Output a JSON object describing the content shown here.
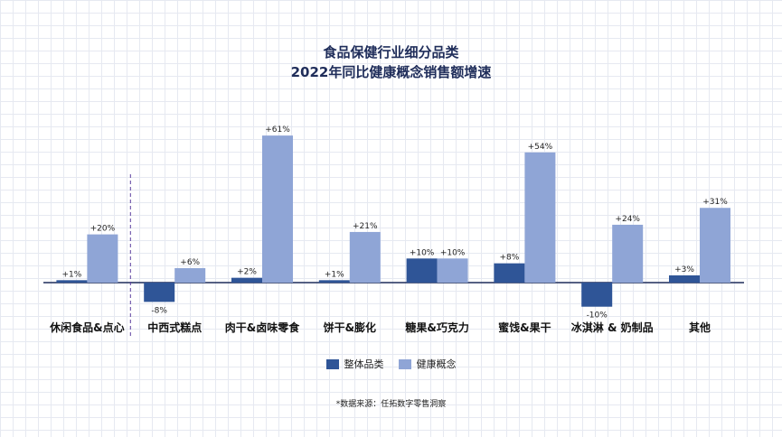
{
  "title_line1": "食品保健行业细分品类",
  "title_line2": "2022年同比健康概念销售额增速",
  "source": "*数据来源：任拓数字零售洞察",
  "colors": {
    "overall": "#2f5597",
    "health": "#8fa5d6"
  },
  "chart_data": {
    "type": "bar",
    "categories": [
      "休闲食品&点心",
      "中西式糕点",
      "肉干&卤味零食",
      "饼干&膨化",
      "糖果&巧克力",
      "蜜饯&果干",
      "冰淇淋 & 奶制品",
      "其他"
    ],
    "series": [
      {
        "name": "整体品类",
        "values": [
          1,
          -8,
          2,
          1,
          10,
          8,
          -10,
          3
        ],
        "labels": [
          "+1%",
          "-8%",
          "+2%",
          "+1%",
          "+10%",
          "+8%",
          "-10%",
          "+3%"
        ]
      },
      {
        "name": "健康概念",
        "values": [
          20,
          6,
          61,
          21,
          10,
          54,
          24,
          31
        ],
        "labels": [
          "+20%",
          "+6%",
          "+61%",
          "+21%",
          "+10%",
          "+54%",
          "+24%",
          "+31%"
        ]
      }
    ],
    "ylim": [
      -12,
      65
    ],
    "grid": true,
    "legend_position": "bottom"
  }
}
